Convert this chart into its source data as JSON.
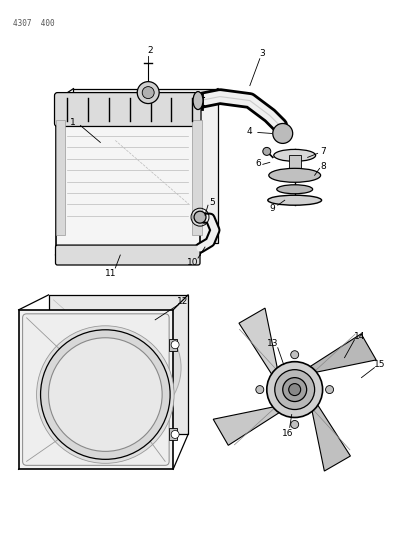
{
  "title": "4307  400",
  "bg": "#ffffff",
  "lc": "#000000",
  "gray1": "#cccccc",
  "gray2": "#e8e8e8",
  "gray3": "#aaaaaa"
}
